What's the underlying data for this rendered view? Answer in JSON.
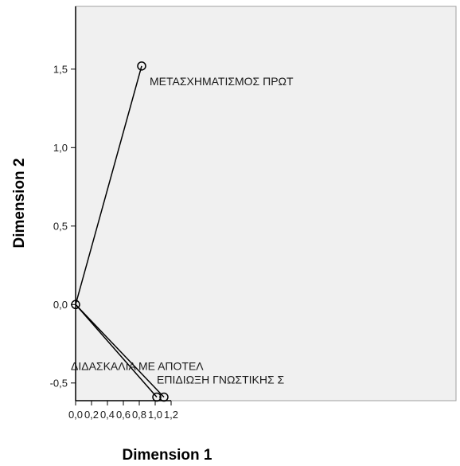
{
  "chart_data": {
    "type": "scatter",
    "title": "",
    "xlabel": "Dimension 1",
    "ylabel": "Dimension 2",
    "xlim": [
      0.0,
      1.3
    ],
    "ylim": [
      -0.6,
      1.9
    ],
    "grid": false,
    "plot_background": "#f0f0f0",
    "line_color": "#000000",
    "xticks": [
      "0,0",
      "0,2",
      "0,4",
      "0,6",
      "0,8",
      "1,0",
      "1,2"
    ],
    "xtick_values": [
      0.0,
      0.2,
      0.4,
      0.6,
      0.8,
      1.0,
      1.2
    ],
    "yticks": [
      "-0,5",
      "0,0",
      "0,5",
      "1,0",
      "1,5"
    ],
    "ytick_values": [
      -0.5,
      0.0,
      0.5,
      1.0,
      1.5
    ],
    "origin": [
      0.0,
      0.0
    ],
    "points": [
      {
        "label": "ΜΕΤΑΣΧΗΜΑΤΙΣΜΟΣ ΠΡΩΤ",
        "x": 0.83,
        "y": 1.52
      },
      {
        "label": "ΔΙΔΑΣΚΑΛΙΑ ΜΕ ΑΠΟΤΕΛ",
        "x": 1.02,
        "y": -0.59
      },
      {
        "label": "ΕΠΙΔΙΩΞΗ ΓΝΩΣΤΙΚΗΣ Σ",
        "x": 1.11,
        "y": -0.59
      }
    ]
  }
}
